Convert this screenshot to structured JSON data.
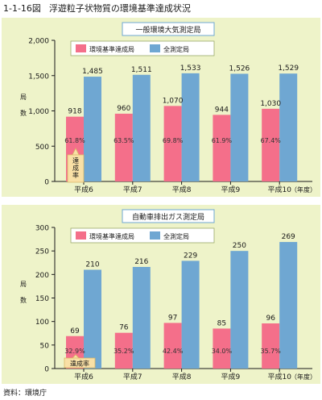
{
  "figure": {
    "number": "1-1-16図",
    "title": "浮遊粒子状物質の環境基準達成状況",
    "source": "資料：環境庁"
  },
  "colors": {
    "achieved": "#f46f8a",
    "all": "#6fa7d2",
    "panel_bg": "#eef3c9",
    "rate_callout": "#f9e0a6"
  },
  "chart_data": [
    {
      "type": "bar",
      "title": "一般環境大気測定局",
      "ylabel": "局数",
      "xunit": "（年度）",
      "categories": [
        "平成6",
        "平成7",
        "平成8",
        "平成9",
        "平成10"
      ],
      "ylim": [
        0,
        2000
      ],
      "yticks": [
        0,
        500,
        1000,
        1500,
        2000
      ],
      "ytick_labels": [
        "0",
        "500",
        "1,000",
        "1,500",
        "2,000"
      ],
      "grid": false,
      "legend_position": "top-left",
      "rate_label": "達成率",
      "series": [
        {
          "name": "環境基準達成局",
          "values": [
            918,
            960,
            1070,
            944,
            1030
          ],
          "value_labels": [
            "918",
            "960",
            "1,070",
            "944",
            "1,030"
          ],
          "rates": [
            "61.8%",
            "63.5%",
            "69.8%",
            "61.9%",
            "67.4%"
          ]
        },
        {
          "name": "全測定局",
          "values": [
            1485,
            1511,
            1533,
            1526,
            1529
          ],
          "value_labels": [
            "1,485",
            "1,511",
            "1,533",
            "1,526",
            "1,529"
          ]
        }
      ]
    },
    {
      "type": "bar",
      "title": "自動車排出ガス測定局",
      "ylabel": "局数",
      "xunit": "（年度）",
      "categories": [
        "平成6",
        "平成7",
        "平成8",
        "平成9",
        "平成10"
      ],
      "ylim": [
        0,
        300
      ],
      "yticks": [
        0,
        50,
        100,
        150,
        200,
        250,
        300
      ],
      "ytick_labels": [
        "0",
        "50",
        "100",
        "150",
        "200",
        "250",
        "300"
      ],
      "grid": false,
      "legend_position": "top-left",
      "rate_label": "達成率",
      "series": [
        {
          "name": "環境基準達成局",
          "values": [
            69,
            76,
            97,
            85,
            96
          ],
          "value_labels": [
            "69",
            "76",
            "97",
            "85",
            "96"
          ],
          "rates": [
            "32.9%",
            "35.2%",
            "42.4%",
            "34.0%",
            "35.7%"
          ]
        },
        {
          "name": "全測定局",
          "values": [
            210,
            216,
            229,
            250,
            269
          ],
          "value_labels": [
            "210",
            "216",
            "229",
            "250",
            "269"
          ]
        }
      ]
    }
  ]
}
